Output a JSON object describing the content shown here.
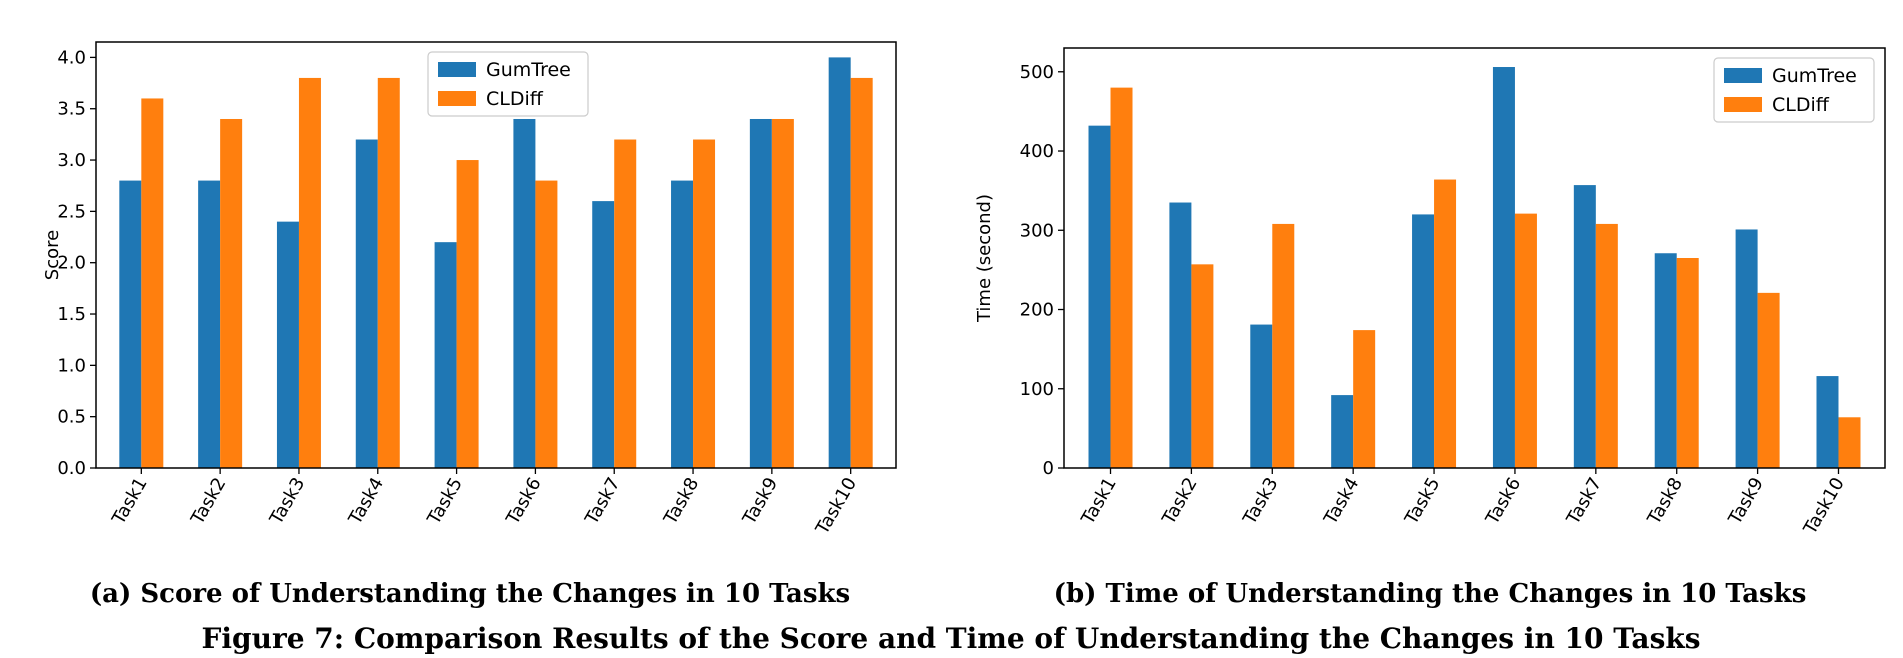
{
  "colors": {
    "gumtree": "#1f77b4",
    "cldiff": "#ff7f0e"
  },
  "chart_data": [
    {
      "type": "bar",
      "categories": [
        "Task1",
        "Task2",
        "Task3",
        "Task4",
        "Task5",
        "Task6",
        "Task7",
        "Task8",
        "Task9",
        "Task10"
      ],
      "series": [
        {
          "name": "GumTree",
          "values": [
            2.8,
            2.8,
            2.4,
            3.2,
            2.2,
            3.4,
            2.6,
            2.8,
            3.4,
            4.0
          ]
        },
        {
          "name": "CLDiff",
          "values": [
            3.6,
            3.4,
            3.8,
            3.8,
            3.0,
            2.8,
            3.2,
            3.2,
            3.4,
            3.8
          ]
        }
      ],
      "ylabel": "Score",
      "xlabel": "",
      "ylim": [
        0,
        4.15
      ],
      "yticks": [
        "0.0",
        "0.5",
        "1.0",
        "1.5",
        "2.0",
        "2.5",
        "3.0",
        "3.5",
        "4.0"
      ],
      "legend": "top-center",
      "grid": false
    },
    {
      "type": "bar",
      "categories": [
        "Task1",
        "Task2",
        "Task3",
        "Task4",
        "Task5",
        "Task6",
        "Task7",
        "Task8",
        "Task9",
        "Task10"
      ],
      "series": [
        {
          "name": "GumTree",
          "values": [
            432,
            335,
            181,
            92,
            320,
            506,
            357,
            271,
            301,
            116
          ]
        },
        {
          "name": "CLDiff",
          "values": [
            480,
            257,
            308,
            174,
            364,
            321,
            308,
            265,
            221,
            64
          ]
        }
      ],
      "ylabel": "Time (second)",
      "xlabel": "",
      "ylim": [
        0,
        530
      ],
      "yticks": [
        "0",
        "100",
        "200",
        "300",
        "400",
        "500"
      ],
      "legend": "top-right",
      "grid": false
    }
  ],
  "captions": {
    "a": "(a) Score of Understanding the Changes in 10 Tasks",
    "b": "(b) Time of Understanding the Changes in 10 Tasks",
    "figure": "Figure 7: Comparison Results of the Score and Time of Understanding the Changes in 10 Tasks"
  }
}
